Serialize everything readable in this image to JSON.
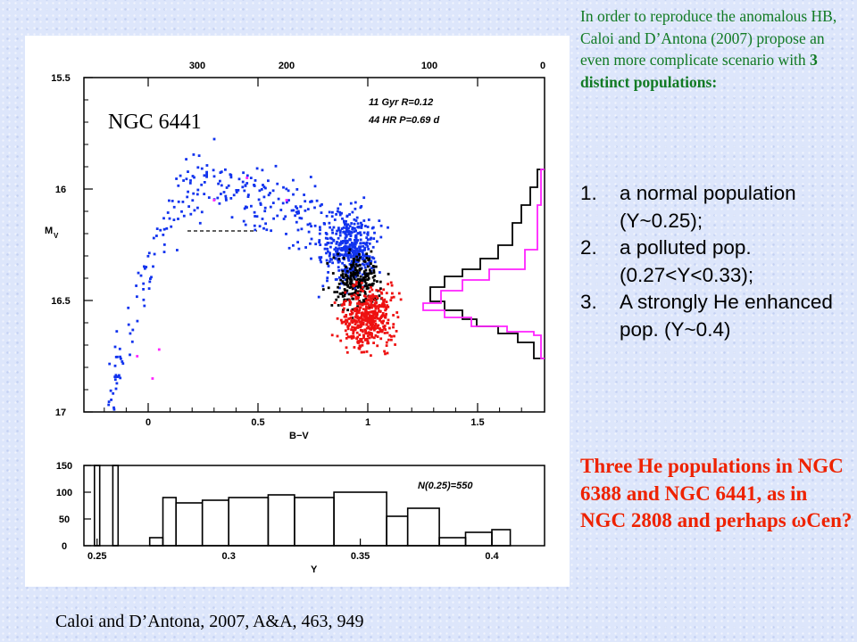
{
  "slide": {
    "intro_pre": "In order to reproduce the anomalous HB, Caloi and D’Antona (2007) propose an even more complicate scenario with ",
    "intro_bold": "3 distinct populations:",
    "populations": [
      {
        "num": "1.",
        "text": "a normal population (Y~0.25);"
      },
      {
        "num": "2.",
        "text": "a polluted pop. (0.27<Y<0.33);"
      },
      {
        "num": "3.",
        "text": "A strongly He enhanced pop. (Y~0.4)"
      }
    ],
    "conclusion_pre": "Three He populations in NGC 6388 and NGC 6441, as in NGC 2808 and perhaps ",
    "conclusion_omega": "ω",
    "conclusion_post": "Cen?",
    "citation": "Caloi and D’Antona, 2007, A&A, 463, 949"
  },
  "colors": {
    "intro_text": "#117a24",
    "conclusion_text": "#ee2200",
    "normal_pop": "#1133ee",
    "polluted_pop": "#000000",
    "enhanced_pop": "#ee1111",
    "model_histogram": "#ff22ff"
  },
  "cmd_panel": {
    "label": "NGC 6441",
    "annotation_line1": "11 Gyr  R=0.12",
    "annotation_line2": "44 HR  P=0.69 d",
    "xlabel": "B−V",
    "ylabel": "M",
    "ylabel_sub": "V",
    "x_ticks": [
      "0",
      "0.5",
      "1",
      "1.5"
    ],
    "y_ticks": [
      "15.5",
      "16",
      "16.5",
      "17"
    ],
    "top_ticks": [
      "300",
      "200",
      "100",
      "0"
    ]
  },
  "chart_data": {
    "type": "bar",
    "xlabel": "Y",
    "ylabel": "",
    "annotation": "N(0.25)=550",
    "x_ticks": [
      "0.25",
      "0.3",
      "0.35",
      "0.4"
    ],
    "y_ticks": [
      "0",
      "50",
      "100",
      "150"
    ],
    "ylim": [
      0,
      150
    ],
    "xlim": [
      0.245,
      0.42
    ],
    "bins": [
      {
        "x0": 0.249,
        "x1": 0.251,
        "value": 150
      },
      {
        "x0": 0.256,
        "x1": 0.258,
        "value": 150
      },
      {
        "x0": 0.27,
        "x1": 0.275,
        "value": 15
      },
      {
        "x0": 0.275,
        "x1": 0.28,
        "value": 90
      },
      {
        "x0": 0.28,
        "x1": 0.29,
        "value": 80
      },
      {
        "x0": 0.29,
        "x1": 0.3,
        "value": 85
      },
      {
        "x0": 0.3,
        "x1": 0.315,
        "value": 90
      },
      {
        "x0": 0.315,
        "x1": 0.325,
        "value": 95
      },
      {
        "x0": 0.325,
        "x1": 0.34,
        "value": 90
      },
      {
        "x0": 0.34,
        "x1": 0.36,
        "value": 100
      },
      {
        "x0": 0.36,
        "x1": 0.368,
        "value": 55
      },
      {
        "x0": 0.368,
        "x1": 0.38,
        "value": 70
      },
      {
        "x0": 0.38,
        "x1": 0.39,
        "value": 15
      },
      {
        "x0": 0.39,
        "x1": 0.4,
        "value": 25
      },
      {
        "x0": 0.4,
        "x1": 0.407,
        "value": 30
      },
      {
        "x0": 0.407,
        "x1": 0.42,
        "value": 0
      }
    ]
  }
}
